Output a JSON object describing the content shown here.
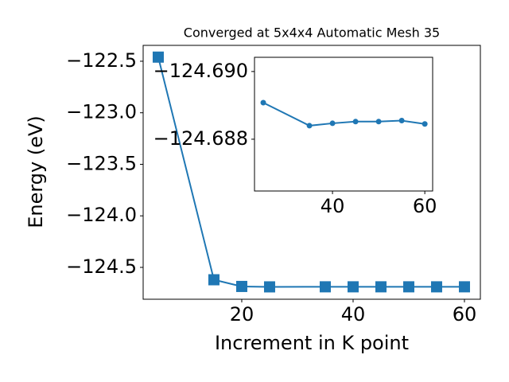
{
  "chart_data": [
    {
      "type": "line",
      "title": "Converged at 5x4x4 Automatic Mesh 35",
      "x_label": "Increment in K point",
      "y_label": "Energy (eV)",
      "x": [
        5,
        15,
        20,
        25,
        35,
        40,
        45,
        50,
        55,
        60
      ],
      "series": [
        {
          "color": "#1f77b4",
          "marker": "square",
          "values": [
            -122.46,
            -124.62,
            -124.685,
            -124.689,
            -124.6884,
            -124.6885,
            -124.6885,
            -124.6885,
            -124.6886,
            -124.6884
          ]
        }
      ],
      "xlim": [
        2.29,
        62.86
      ],
      "ylim": [
        -124.809,
        -122.346
      ],
      "xticks": [
        20,
        40,
        60
      ],
      "yticks": [
        {
          "value": -124.5,
          "label": "−124.5"
        },
        {
          "value": -124.0,
          "label": "−124.0"
        },
        {
          "value": -123.5,
          "label": "−123.5"
        },
        {
          "value": -123.0,
          "label": "−123.0"
        },
        {
          "value": -122.5,
          "label": "−122.5"
        }
      ]
    },
    {
      "type": "line",
      "x": [
        25,
        35,
        40,
        45,
        50,
        55,
        60
      ],
      "series": [
        {
          "color": "#1f77b4",
          "marker": "circle",
          "values": [
            -124.68908,
            -124.6884,
            -124.68847,
            -124.68852,
            -124.68852,
            -124.68855,
            -124.68845
          ]
        }
      ],
      "xlim": [
        23.1,
        61.7
      ],
      "ylim": [
        -124.68647,
        -124.69042
      ],
      "xticks": [
        40,
        60
      ],
      "yticks": [
        {
          "value": -124.69,
          "label": "−124.690"
        },
        {
          "value": -124.688,
          "label": "−124.688"
        }
      ]
    }
  ]
}
